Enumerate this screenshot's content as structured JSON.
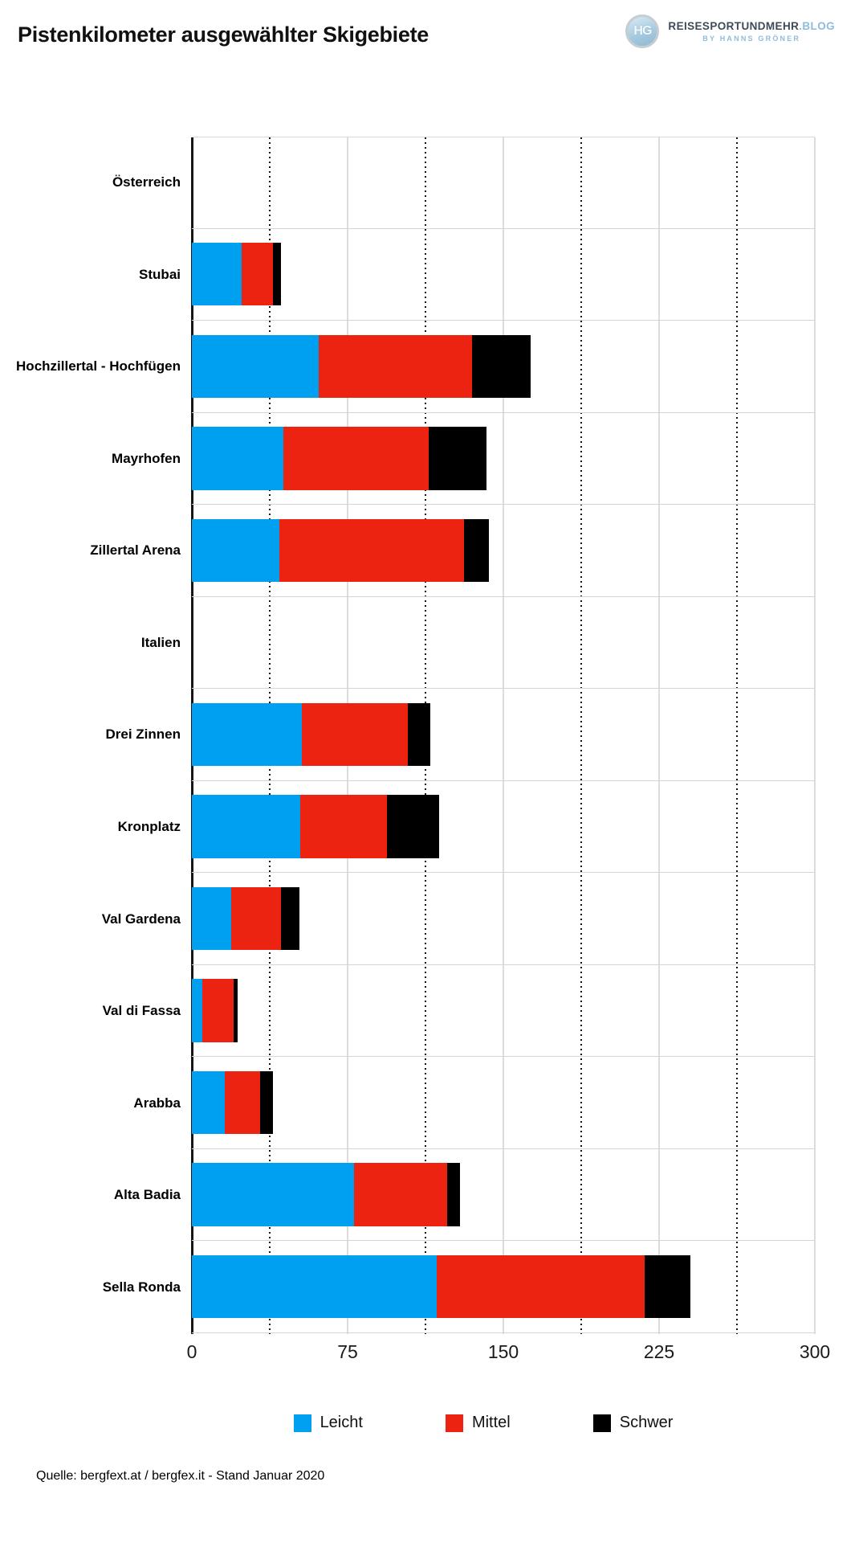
{
  "header": {
    "title": "Pistenkilometer ausgewählter Skigebiete",
    "logo": {
      "monogram": "HG",
      "brand": "REISESPORTUNDMEHR",
      "suffix": ".BLOG",
      "tagline": "BY HANNS GRÖNER"
    }
  },
  "chart_data": {
    "type": "bar",
    "orientation": "horizontal",
    "stacked": true,
    "title": "Pistenkilometer ausgewählter Skigebiete",
    "xlabel": "",
    "ylabel": "",
    "xlim": [
      0,
      300
    ],
    "x_major_ticks": [
      0,
      75,
      150,
      225,
      300
    ],
    "x_minor_ticks": [
      37.5,
      112.5,
      187.5,
      262.5
    ],
    "grid": "vertical; solid light gray at major ticks, dotted dark at minor ticks; light gray horizontal row separators",
    "legend_position": "bottom",
    "categories": [
      "Österreich",
      "Stubai",
      "Hochzillertal - Hochfügen",
      "Mayrhofen",
      "Zillertal Arena",
      "Italien",
      "Drei Zinnen",
      "Kronplatz",
      "Val Gardena",
      "Val di Fassa",
      "Arabba",
      "Alta Badia",
      "Sella Ronda"
    ],
    "header_rows": [
      "Österreich",
      "Italien"
    ],
    "series": [
      {
        "name": "Leicht",
        "color": "#00A0F0",
        "values": [
          null,
          24,
          61,
          44,
          42,
          null,
          53,
          52,
          19,
          5,
          16,
          78,
          118
        ]
      },
      {
        "name": "Mittel",
        "color": "#EC2310",
        "values": [
          null,
          15,
          74,
          70,
          89,
          null,
          51,
          42,
          24,
          15,
          17,
          45,
          100
        ]
      },
      {
        "name": "Schwer",
        "color": "#000000",
        "values": [
          null,
          4,
          28,
          28,
          12,
          null,
          11,
          25,
          9,
          2,
          6,
          6,
          22
        ]
      }
    ],
    "totals": [
      null,
      43,
      163,
      142,
      143,
      null,
      115,
      119,
      52,
      22,
      39,
      129,
      240
    ]
  },
  "axis": {
    "tick_labels": [
      "0",
      "75",
      "150",
      "225",
      "300"
    ]
  },
  "legend": {
    "items": [
      {
        "label": "Leicht",
        "color": "#00A0F0"
      },
      {
        "label": "Mittel",
        "color": "#EC2310"
      },
      {
        "label": "Schwer",
        "color": "#000000"
      }
    ]
  },
  "footer": {
    "source": "Quelle: bergfext.at / bergfex.it  - Stand Januar 2020"
  },
  "colors": {
    "leicht": "#00A0F0",
    "mittel": "#EC2310",
    "schwer": "#000000",
    "grid_major": "#DCDCDC",
    "grid_minor": "#141414",
    "axis_line": "#161616",
    "brand_dark": "#3E4A57",
    "brand_light": "#8FBCDB"
  }
}
